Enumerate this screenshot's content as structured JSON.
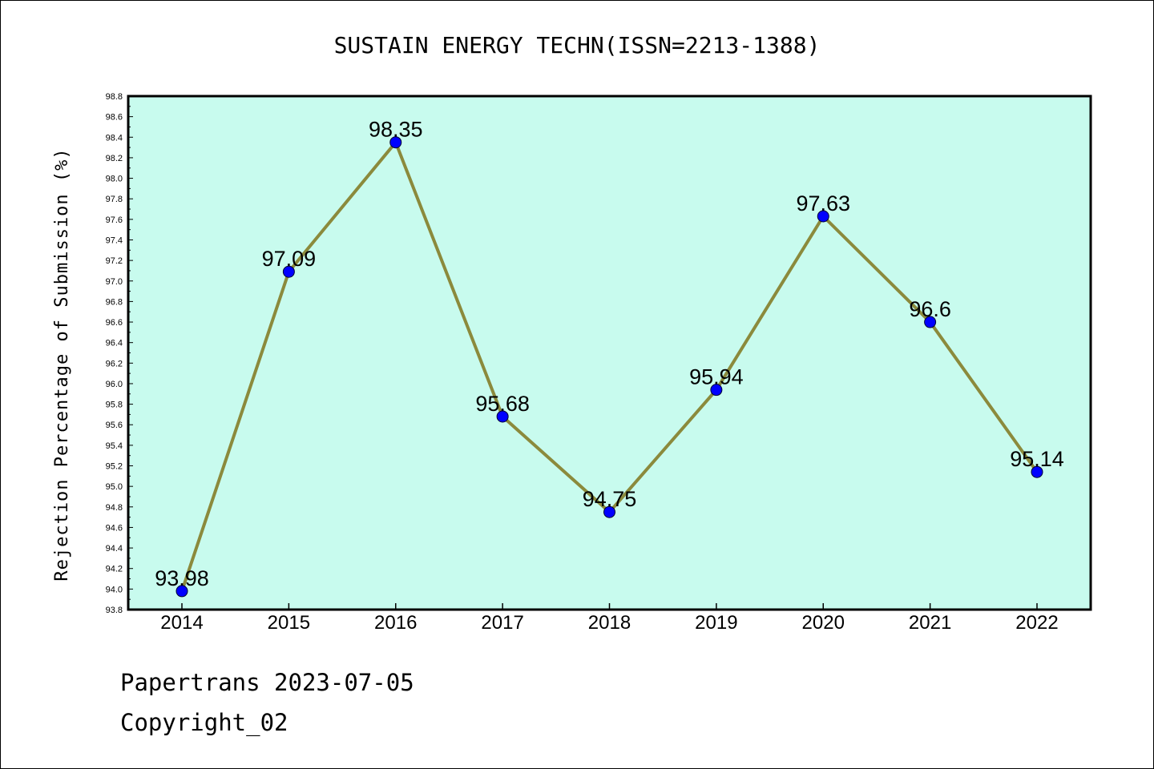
{
  "chart_data": {
    "type": "line",
    "title": "SUSTAIN ENERGY TECHN(ISSN=2213-1388)",
    "xlabel": "",
    "ylabel": "Rejection Percentage of Submission (%)",
    "categories": [
      "2014",
      "2015",
      "2016",
      "2017",
      "2018",
      "2019",
      "2020",
      "2021",
      "2022"
    ],
    "values": [
      93.98,
      97.09,
      98.35,
      95.68,
      94.75,
      95.94,
      97.63,
      96.6,
      95.14
    ],
    "data_labels": [
      "93.98",
      "97.09",
      "98.35",
      "95.68",
      "94.75",
      "95.94",
      "97.63",
      "96.6",
      "95.14"
    ],
    "ylim": [
      93.8,
      98.8
    ],
    "yticks": [
      "93.8",
      "94.0",
      "94.2",
      "94.4",
      "94.6",
      "94.8",
      "95.0",
      "95.2",
      "95.4",
      "95.6",
      "95.8",
      "96.0",
      "96.2",
      "96.4",
      "96.6",
      "96.8",
      "97.0",
      "97.2",
      "97.4",
      "97.6",
      "97.8",
      "98.0",
      "98.2",
      "98.4",
      "98.6",
      "98.8"
    ],
    "grid": false,
    "colors": {
      "plot_background": "#c8fbee",
      "line": "#8b8a3c",
      "marker": "#0000ff"
    }
  },
  "footer": {
    "line1": "Papertrans 2023-07-05",
    "line2": "Copyright_02"
  }
}
